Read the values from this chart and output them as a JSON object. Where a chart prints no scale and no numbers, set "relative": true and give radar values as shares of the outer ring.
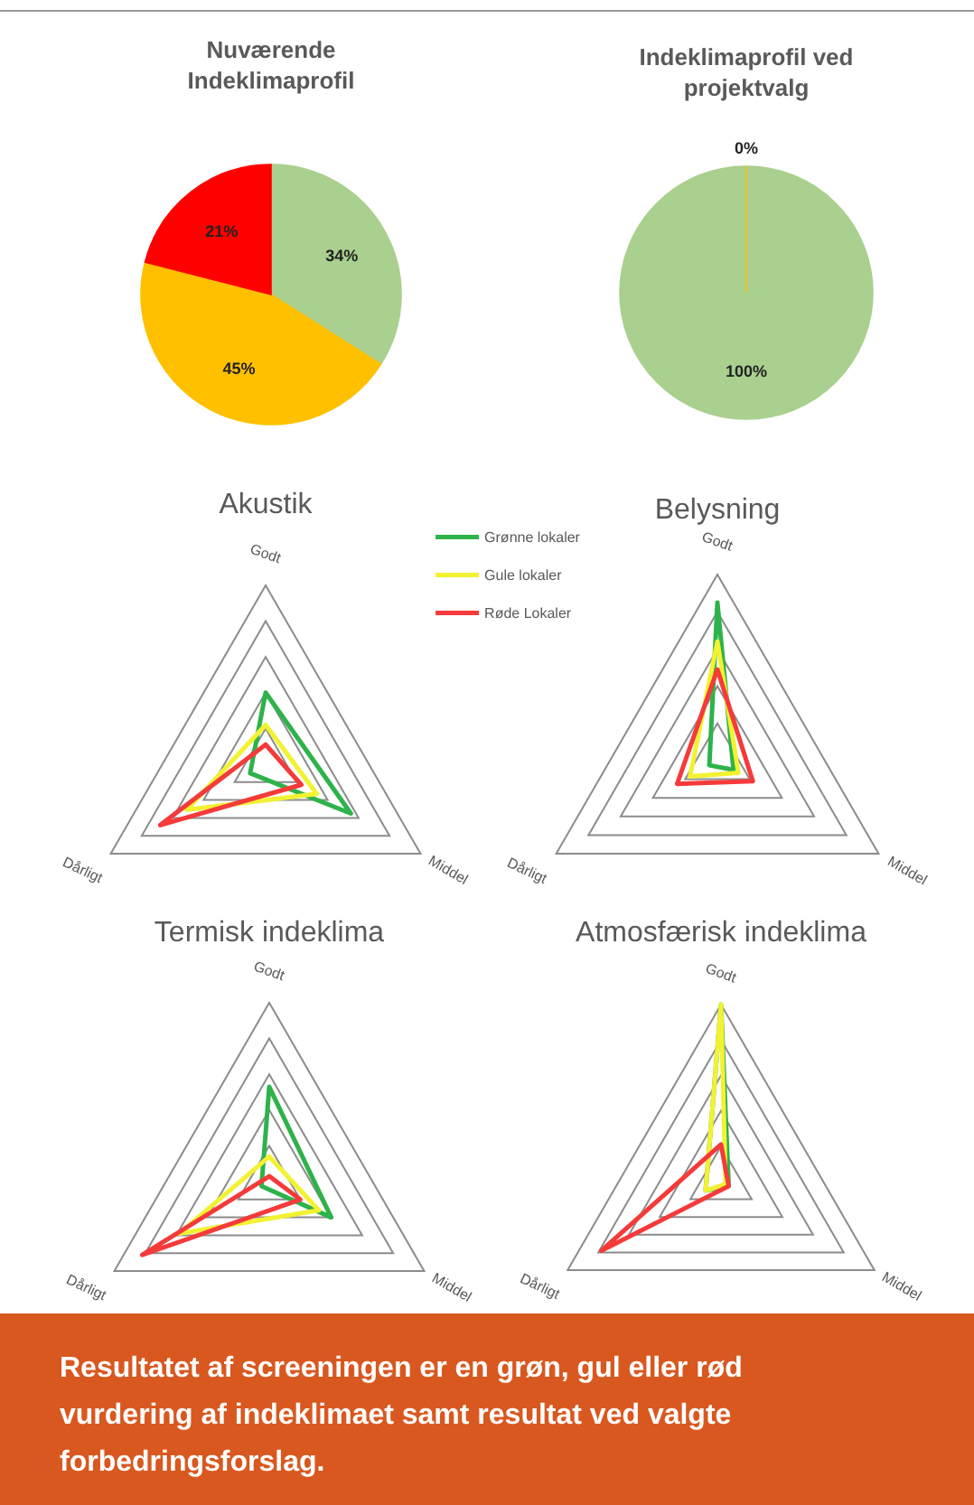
{
  "chart_data": [
    {
      "type": "pie",
      "title": "Nuværende Indeklimaprofil",
      "categories": [
        null,
        null,
        null
      ],
      "values": [
        34,
        45,
        21
      ],
      "colors": [
        "#a9d08e",
        "#ffc000",
        "#ff0000"
      ],
      "value_labels": [
        "34%",
        "45%",
        "21%"
      ]
    },
    {
      "type": "pie",
      "title": "Indeklimaprofil ved projektvalg",
      "categories": [
        null,
        null
      ],
      "values": [
        100,
        0
      ],
      "colors": [
        "#a9d08e",
        "#ffc000"
      ],
      "value_labels": [
        "100%",
        "0%"
      ]
    },
    {
      "type": "radar",
      "title": "Akustik",
      "relative": true,
      "categories": [
        "Godt",
        "Middel",
        "Dårligt"
      ],
      "legend": "top right",
      "series": [
        {
          "name": "Grønne lokaler",
          "color": "#2db34a",
          "values": [
            0.4,
            0.55,
            0.1
          ]
        },
        {
          "name": "Gule lokaler",
          "color": "#f2f232",
          "values": [
            0.22,
            0.33,
            0.51
          ]
        },
        {
          "name": "Røde Lokaler",
          "color": "#f53a3a",
          "values": [
            0.11,
            0.23,
            0.68
          ]
        }
      ]
    },
    {
      "type": "radar",
      "title": "Belysning",
      "relative": true,
      "categories": [
        "Godt",
        "Middel",
        "Dårligt"
      ],
      "series": [
        {
          "color": "#2db34a",
          "values": [
            0.85,
            0.1,
            0.05
          ]
        },
        {
          "color": "#f2f232",
          "values": [
            0.64,
            0.13,
            0.17
          ]
        },
        {
          "color": "#f53a3a",
          "values": [
            0.49,
            0.22,
            0.25
          ]
        }
      ]
    },
    {
      "type": "radar",
      "title": "Termisk indeklima",
      "relative": true,
      "categories": [
        "Godt",
        "Middel",
        "Dårligt"
      ],
      "series": [
        {
          "color": "#2db34a",
          "values": [
            0.53,
            0.4,
            0.05
          ]
        },
        {
          "color": "#f2f232",
          "values": [
            0.14,
            0.32,
            0.58
          ]
        },
        {
          "color": "#f53a3a",
          "values": [
            0.03,
            0.2,
            0.82
          ]
        }
      ]
    },
    {
      "type": "radar",
      "title": "Atmosfærisk indeklima",
      "relative": true,
      "categories": [
        "Godt",
        "Middel",
        "Dårligt"
      ],
      "annotations": [
        "Resultatet af screeningen er en grøn, gul eller rød vurdering af indeklimaet samt resultat ved valgte forbedringsforslag."
      ],
      "series": [
        {
          "color": "#2db34a",
          "values": [
            1.0,
            0.05,
            0.1
          ]
        },
        {
          "color": "#f2f232",
          "values": [
            1.0,
            0.03,
            0.1
          ]
        },
        {
          "color": "#f53a3a",
          "values": [
            0.21,
            0.05,
            0.78
          ]
        }
      ]
    }
  ]
}
